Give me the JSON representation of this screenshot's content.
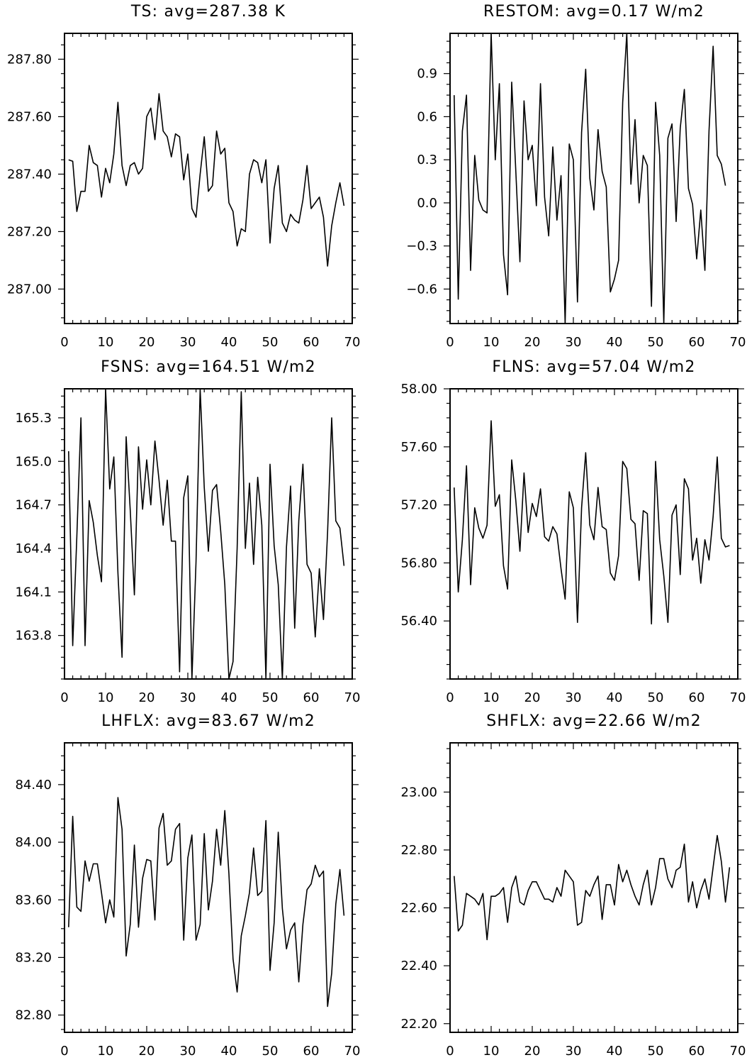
{
  "chart_data": [
    {
      "type": "line",
      "title": "TS: avg=287.38 K",
      "xlim": [
        0,
        70
      ],
      "ylim": [
        286.88,
        287.89
      ],
      "xticks": [
        0,
        10,
        20,
        30,
        40,
        50,
        60,
        70
      ],
      "yticks": [
        287.0,
        287.2,
        287.4,
        287.6,
        287.8
      ],
      "yticklabels": [
        "287.00",
        "287.20",
        "287.40",
        "287.60",
        "287.80"
      ],
      "x_start": 1,
      "values": [
        287.45,
        287.445,
        287.27,
        287.34,
        287.34,
        287.5,
        287.44,
        287.43,
        287.32,
        287.42,
        287.37,
        287.47,
        287.65,
        287.43,
        287.36,
        287.43,
        287.44,
        287.4,
        287.42,
        287.6,
        287.63,
        287.52,
        287.68,
        287.55,
        287.53,
        287.46,
        287.54,
        287.53,
        287.38,
        287.47,
        287.28,
        287.25,
        287.4,
        287.53,
        287.34,
        287.36,
        287.55,
        287.47,
        287.49,
        287.3,
        287.27,
        287.15,
        287.21,
        287.2,
        287.4,
        287.45,
        287.44,
        287.37,
        287.45,
        287.16,
        287.35,
        287.43,
        287.23,
        287.2,
        287.26,
        287.24,
        287.23,
        287.31,
        287.43,
        287.28,
        287.3,
        287.32,
        287.25,
        287.08,
        287.22,
        287.3,
        287.37,
        287.29
      ]
    },
    {
      "type": "line",
      "title": "RESTOM: avg=0.17 W/m2",
      "xlim": [
        0,
        70
      ],
      "ylim": [
        -0.84,
        1.18
      ],
      "xticks": [
        0,
        10,
        20,
        30,
        40,
        50,
        60,
        70
      ],
      "yticks": [
        -0.6,
        -0.3,
        0.0,
        0.3,
        0.6,
        0.9
      ],
      "yticklabels": [
        "−0.6",
        "−0.3",
        "0.0",
        "0.3",
        "0.6",
        "0.9"
      ],
      "x_start": 1,
      "values": [
        0.75,
        -0.67,
        0.5,
        0.75,
        -0.47,
        0.33,
        0.02,
        -0.05,
        -0.07,
        1.18,
        0.3,
        0.83,
        -0.36,
        -0.64,
        0.84,
        0.22,
        -0.41,
        0.71,
        0.3,
        0.4,
        -0.02,
        0.83,
        0.04,
        -0.23,
        0.39,
        -0.12,
        0.19,
        -0.84,
        0.41,
        0.3,
        -0.69,
        0.49,
        0.93,
        0.17,
        -0.05,
        0.51,
        0.22,
        0.11,
        -0.62,
        -0.53,
        -0.4,
        0.7,
        1.18,
        0.13,
        0.58,
        0.0,
        0.33,
        0.26,
        -0.72,
        0.7,
        0.33,
        -0.84,
        0.45,
        0.55,
        -0.13,
        0.52,
        0.79,
        0.1,
        -0.01,
        -0.39,
        -0.05,
        -0.47,
        0.5,
        1.09,
        0.33,
        0.27,
        0.12
      ]
    },
    {
      "type": "line",
      "title": "FSNS: avg=164.51 W/m2",
      "xlim": [
        0,
        70
      ],
      "ylim": [
        163.5,
        165.5
      ],
      "xticks": [
        0,
        10,
        20,
        30,
        40,
        50,
        60,
        70
      ],
      "yticks": [
        163.8,
        164.1,
        164.4,
        164.7,
        165.0,
        165.3
      ],
      "yticklabels": [
        "163.8",
        "164.1",
        "164.4",
        "164.7",
        "165.0",
        "165.3"
      ],
      "x_start": 1,
      "values": [
        165.07,
        163.73,
        164.48,
        165.3,
        163.73,
        164.73,
        164.58,
        164.35,
        164.17,
        165.5,
        164.81,
        165.03,
        164.23,
        163.65,
        165.17,
        164.66,
        164.08,
        165.1,
        164.67,
        165.01,
        164.7,
        165.14,
        164.87,
        164.56,
        164.87,
        164.45,
        164.45,
        163.55,
        164.75,
        164.9,
        163.5,
        164.31,
        165.5,
        164.82,
        164.38,
        164.8,
        164.84,
        164.52,
        164.15,
        163.5,
        163.62,
        164.4,
        165.48,
        164.4,
        164.85,
        164.29,
        164.89,
        164.56,
        163.5,
        164.98,
        164.42,
        164.15,
        163.5,
        164.41,
        164.83,
        163.85,
        164.59,
        164.98,
        164.29,
        164.23,
        163.79,
        164.26,
        163.91,
        164.51,
        165.3,
        164.59,
        164.54,
        164.28
      ]
    },
    {
      "type": "line",
      "title": "FLNS: avg=57.04 W/m2",
      "xlim": [
        0,
        70
      ],
      "ylim": [
        56.0,
        58.0
      ],
      "xticks": [
        0,
        10,
        20,
        30,
        40,
        50,
        60,
        70
      ],
      "yticks": [
        56.4,
        56.8,
        57.2,
        57.6,
        58.0
      ],
      "yticklabels": [
        "56.40",
        "56.80",
        "57.20",
        "57.60",
        "58.00"
      ],
      "x_start": 1,
      "values": [
        57.32,
        56.6,
        56.96,
        57.47,
        56.65,
        57.18,
        57.04,
        56.97,
        57.06,
        57.78,
        57.19,
        57.27,
        56.78,
        56.62,
        57.51,
        57.23,
        56.88,
        57.42,
        57.01,
        57.21,
        57.12,
        57.31,
        56.98,
        56.95,
        57.05,
        57.0,
        56.76,
        56.55,
        57.29,
        57.18,
        56.39,
        57.18,
        57.56,
        57.06,
        56.96,
        57.32,
        57.05,
        57.03,
        56.73,
        56.68,
        56.85,
        57.5,
        57.45,
        57.1,
        57.07,
        56.68,
        57.16,
        57.14,
        56.38,
        57.5,
        56.96,
        56.71,
        56.39,
        57.13,
        57.2,
        56.72,
        57.38,
        57.31,
        56.82,
        56.97,
        56.66,
        56.96,
        56.82,
        57.12,
        57.53,
        56.97,
        56.91,
        56.92
      ]
    },
    {
      "type": "line",
      "title": "LHFLX: avg=83.67 W/m2",
      "xlim": [
        0,
        70
      ],
      "ylim": [
        82.68,
        84.69
      ],
      "xticks": [
        0,
        10,
        20,
        30,
        40,
        50,
        60,
        70
      ],
      "yticks": [
        82.8,
        83.2,
        83.6,
        84.0,
        84.4
      ],
      "yticklabels": [
        "82.80",
        "83.20",
        "83.60",
        "84.00",
        "84.40"
      ],
      "x_start": 1,
      "values": [
        83.41,
        84.18,
        83.55,
        83.52,
        83.87,
        83.73,
        83.85,
        83.85,
        83.65,
        83.44,
        83.6,
        83.48,
        84.31,
        84.09,
        83.21,
        83.43,
        83.98,
        83.41,
        83.75,
        83.88,
        83.87,
        83.46,
        84.1,
        84.2,
        83.84,
        83.87,
        84.09,
        84.13,
        83.32,
        83.89,
        84.05,
        83.32,
        83.43,
        84.06,
        83.53,
        83.73,
        84.09,
        83.84,
        84.22,
        83.78,
        83.19,
        82.96,
        83.35,
        83.49,
        83.65,
        83.96,
        83.63,
        83.66,
        84.15,
        83.11,
        83.44,
        84.07,
        83.54,
        83.26,
        83.39,
        83.44,
        83.03,
        83.43,
        83.67,
        83.71,
        83.84,
        83.76,
        83.8,
        82.86,
        83.09,
        83.57,
        83.81,
        83.49
      ]
    },
    {
      "type": "line",
      "title": "SHFLX: avg=22.66 W/m2",
      "xlim": [
        0,
        70
      ],
      "ylim": [
        22.17,
        23.17
      ],
      "xticks": [
        0,
        10,
        20,
        30,
        40,
        50,
        60,
        70
      ],
      "yticks": [
        22.2,
        22.4,
        22.6,
        22.8,
        23.0
      ],
      "yticklabels": [
        "22.20",
        "22.40",
        "22.60",
        "22.80",
        "23.00"
      ],
      "x_start": 1,
      "values": [
        22.71,
        22.52,
        22.54,
        22.65,
        22.64,
        22.63,
        22.61,
        22.65,
        22.49,
        22.64,
        22.64,
        22.65,
        22.67,
        22.55,
        22.67,
        22.71,
        22.62,
        22.61,
        22.66,
        22.69,
        22.69,
        22.66,
        22.63,
        22.63,
        22.62,
        22.67,
        22.64,
        22.73,
        22.71,
        22.69,
        22.54,
        22.55,
        22.66,
        22.64,
        22.68,
        22.71,
        22.56,
        22.68,
        22.68,
        22.61,
        22.75,
        22.69,
        22.73,
        22.68,
        22.64,
        22.61,
        22.68,
        22.73,
        22.61,
        22.67,
        22.77,
        22.77,
        22.7,
        22.67,
        22.73,
        22.74,
        22.82,
        22.62,
        22.69,
        22.6,
        22.66,
        22.7,
        22.63,
        22.74,
        22.85,
        22.76,
        22.62,
        22.74
      ]
    }
  ]
}
